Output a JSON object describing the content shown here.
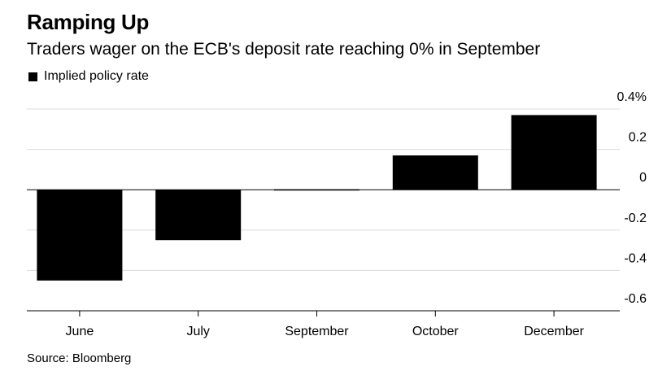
{
  "title": "Ramping Up",
  "subtitle": "Traders wager on the ECB's deposit rate reaching 0% in September",
  "source": "Source: Bloomberg",
  "colors": {
    "bar": "#000000",
    "grid": "#dcdcdc",
    "axis": "#000000"
  },
  "chart_data": {
    "type": "bar",
    "categories": [
      "June",
      "July",
      "September",
      "October",
      "December"
    ],
    "series": [
      {
        "name": "Implied policy rate",
        "values": [
          -0.45,
          -0.25,
          -0.005,
          0.17,
          0.37
        ]
      }
    ],
    "yticks": [
      "0.4%",
      "0.2",
      "0",
      "-0.2",
      "-0.4",
      "-0.6"
    ],
    "ytick_values": [
      0.4,
      0.2,
      0,
      -0.2,
      -0.4,
      -0.6
    ],
    "ylim": [
      -0.6,
      0.4
    ],
    "y_axis_side": "right",
    "grid": true,
    "legend_position": "top-left"
  }
}
